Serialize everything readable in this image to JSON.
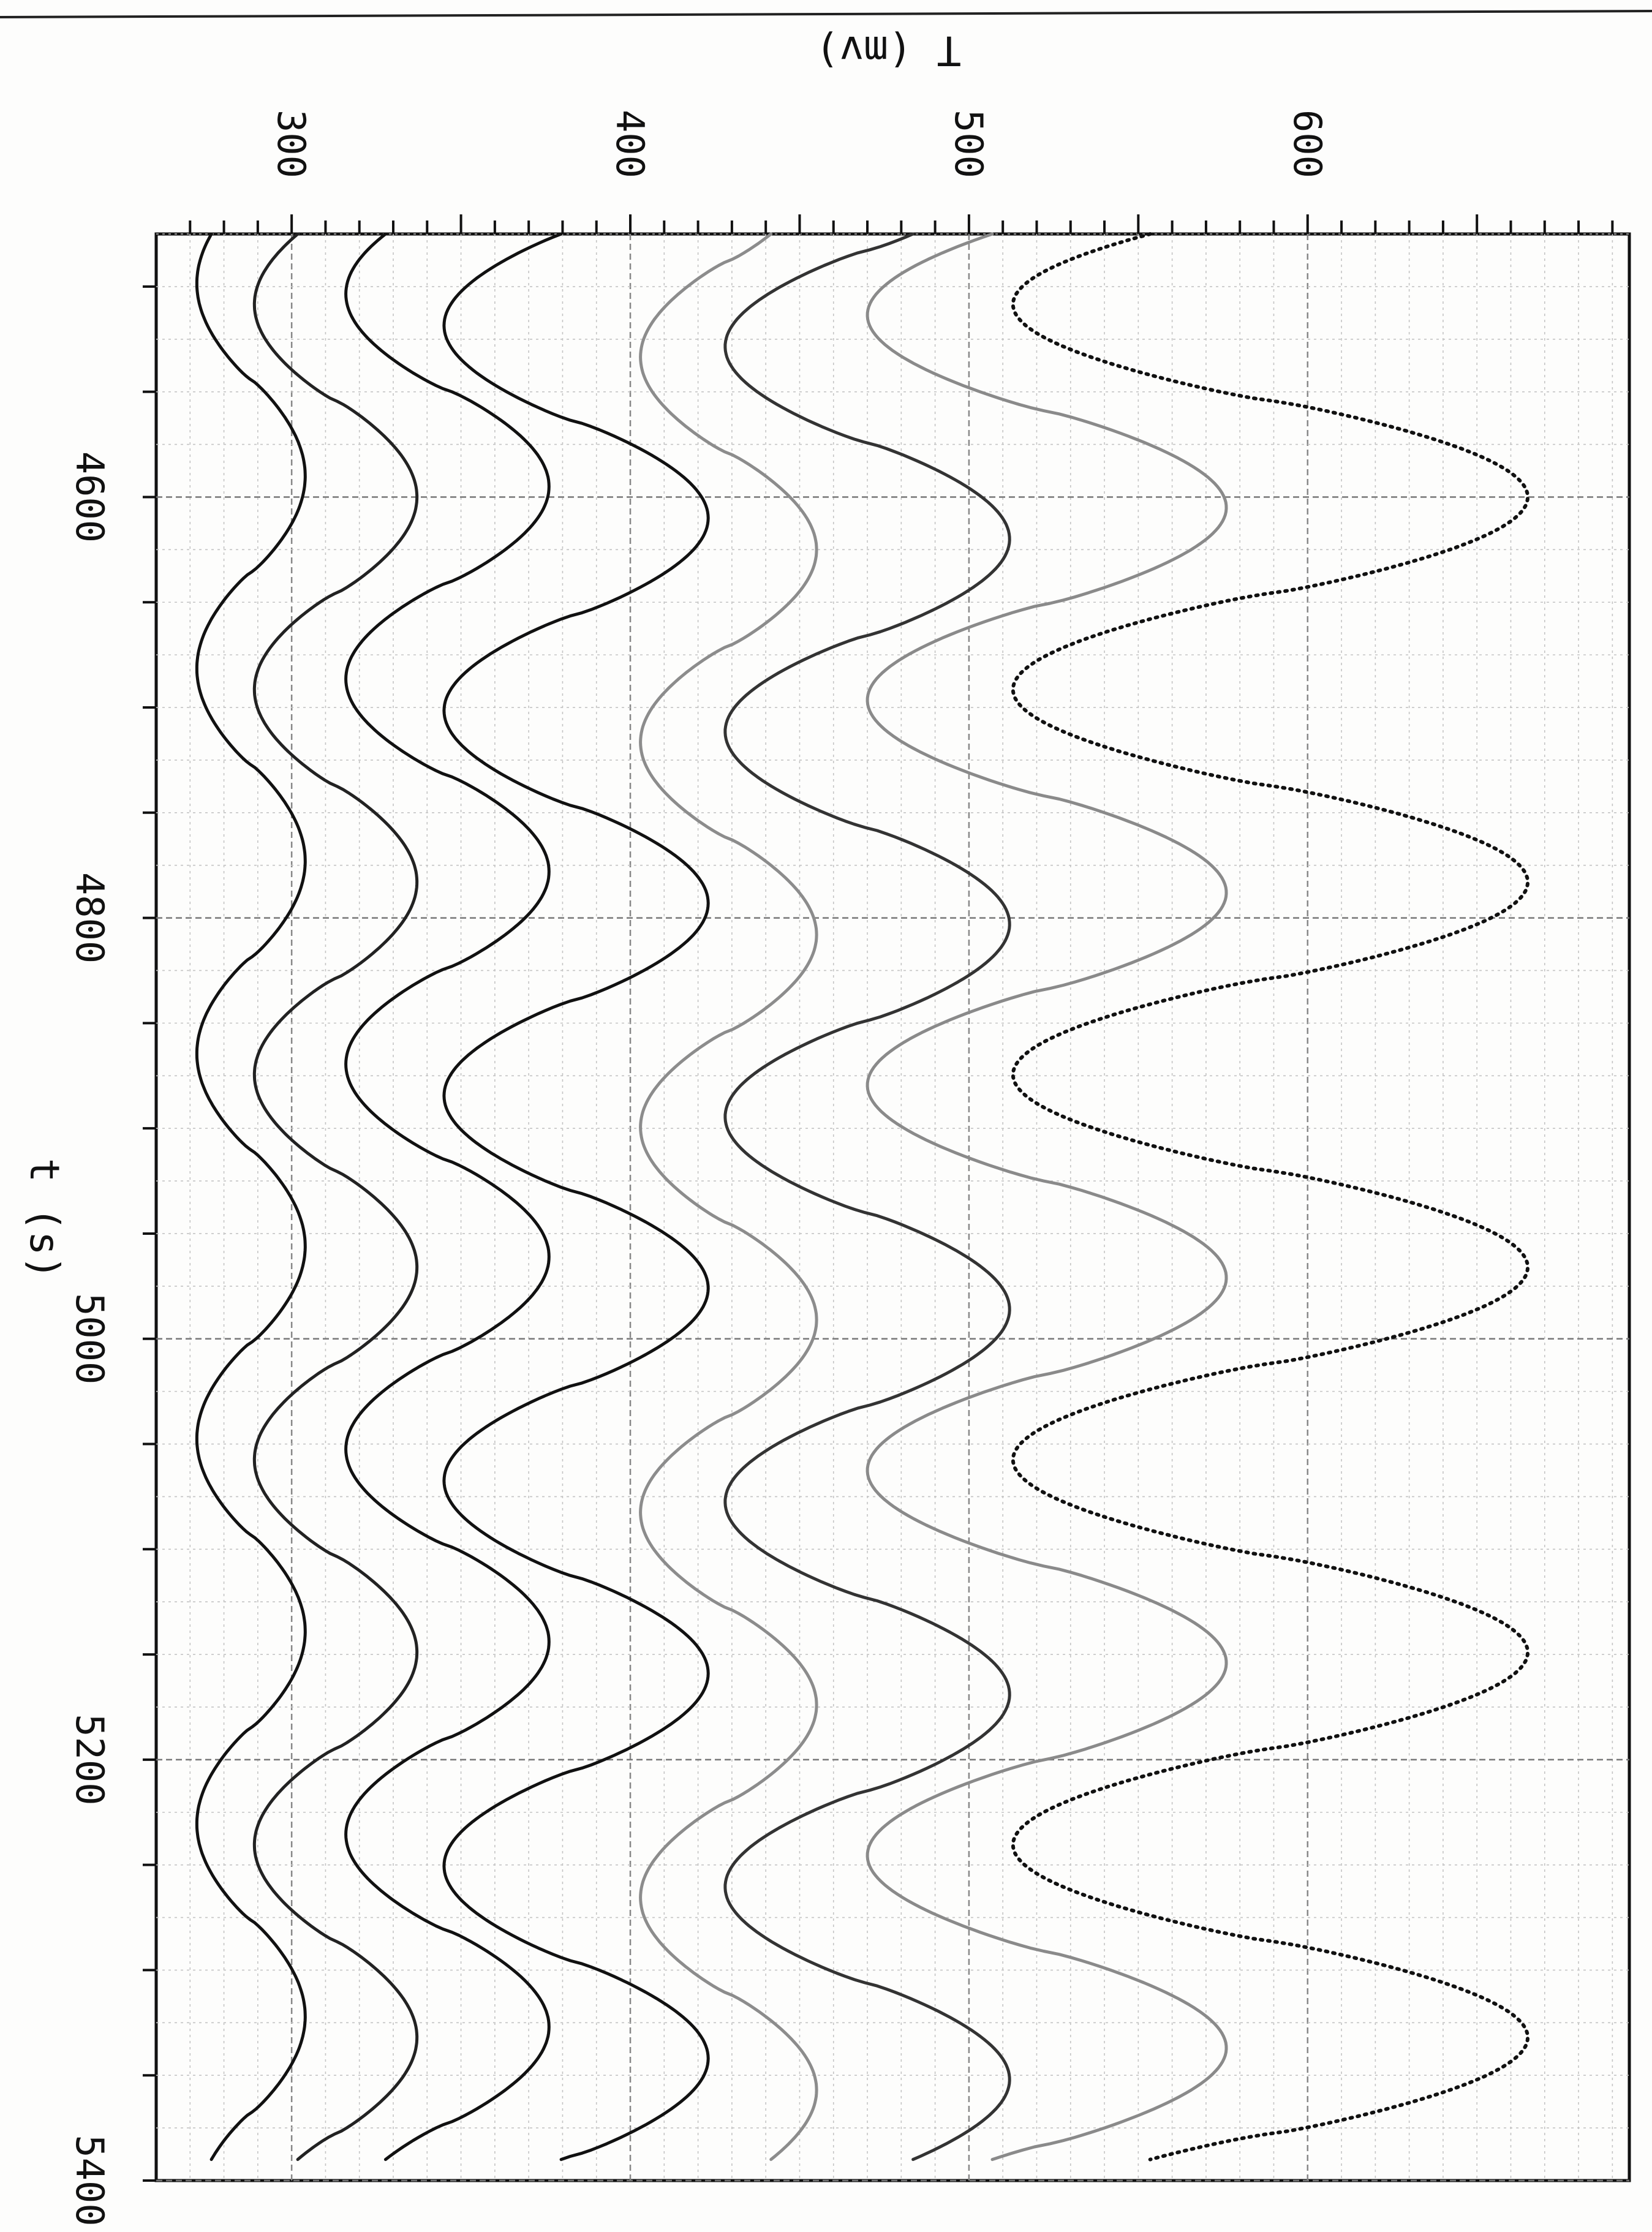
{
  "chart_data": {
    "type": "line",
    "title": "",
    "xlabel": "t (s)",
    "ylabel": "T (mv)",
    "xlim": [
      4475,
      5400
    ],
    "ylim": [
      260,
      695
    ],
    "x_ticks": [
      "4600",
      "4800",
      "5000",
      "5200",
      "5400"
    ],
    "y_ticks": [
      "300",
      "400",
      "500",
      "600"
    ],
    "grid": true,
    "legend": "none",
    "orientation": "rotated 90° clockwise (t increases downward, T increases to the right)",
    "period_s": 183,
    "series": [
      {
        "color": "#111111",
        "style": "solid",
        "mean": 288,
        "amplitude": 16,
        "peak_t": 4590
      },
      {
        "color": "#222222",
        "style": "solid",
        "mean": 313,
        "amplitude": 24,
        "peak_t": 4600
      },
      {
        "color": "#111111",
        "style": "solid",
        "mean": 346,
        "amplitude": 30,
        "peak_t": 4595
      },
      {
        "color": "#111111",
        "style": "solid",
        "mean": 384,
        "amplitude": 39,
        "peak_t": 4610
      },
      {
        "color": "#8c8c8c",
        "style": "solid",
        "mean": 429,
        "amplitude": 26,
        "peak_t": 4625
      },
      {
        "color": "#333333",
        "style": "solid",
        "mean": 470,
        "amplitude": 42,
        "peak_t": 4620
      },
      {
        "color": "#8a8a8a",
        "style": "solid",
        "mean": 523,
        "amplitude": 53,
        "peak_t": 4605
      },
      {
        "color": "#111111",
        "style": "dotted",
        "mean": 589,
        "amplitude": 76,
        "peak_t": 4600
      }
    ]
  }
}
